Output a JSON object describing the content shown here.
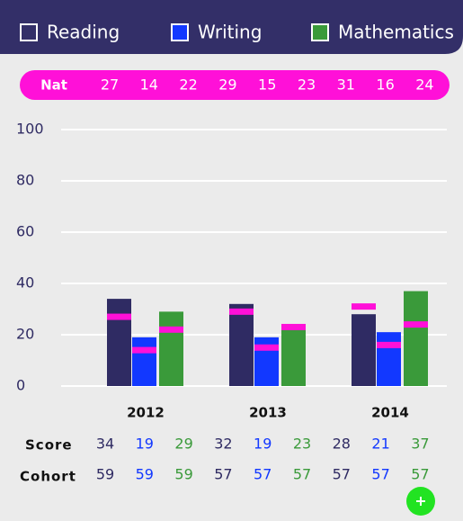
{
  "chart_data": {
    "type": "bar",
    "categories": [
      "2012",
      "2013",
      "2014"
    ],
    "series": [
      {
        "name": "Reading",
        "color": "#2f2b63",
        "values": [
          34,
          32,
          28
        ],
        "nat": [
          27,
          29,
          31
        ],
        "cohort": [
          59,
          57,
          57
        ]
      },
      {
        "name": "Writing",
        "color": "#1238ff",
        "values": [
          19,
          19,
          21
        ],
        "nat": [
          14,
          15,
          16
        ],
        "cohort": [
          59,
          57,
          57
        ]
      },
      {
        "name": "Mathematics",
        "color": "#3a9a3a",
        "values": [
          29,
          23,
          37
        ],
        "nat": [
          22,
          23,
          24
        ],
        "cohort": [
          59,
          57,
          57
        ]
      }
    ],
    "nat_label": "Nat",
    "nat_color": "#ff10d8",
    "score_label": "Score",
    "cohort_label": "Cohort",
    "ylim": [
      0,
      100
    ],
    "yticks": [
      0,
      20,
      40,
      60,
      80,
      100
    ],
    "grid": true
  }
}
